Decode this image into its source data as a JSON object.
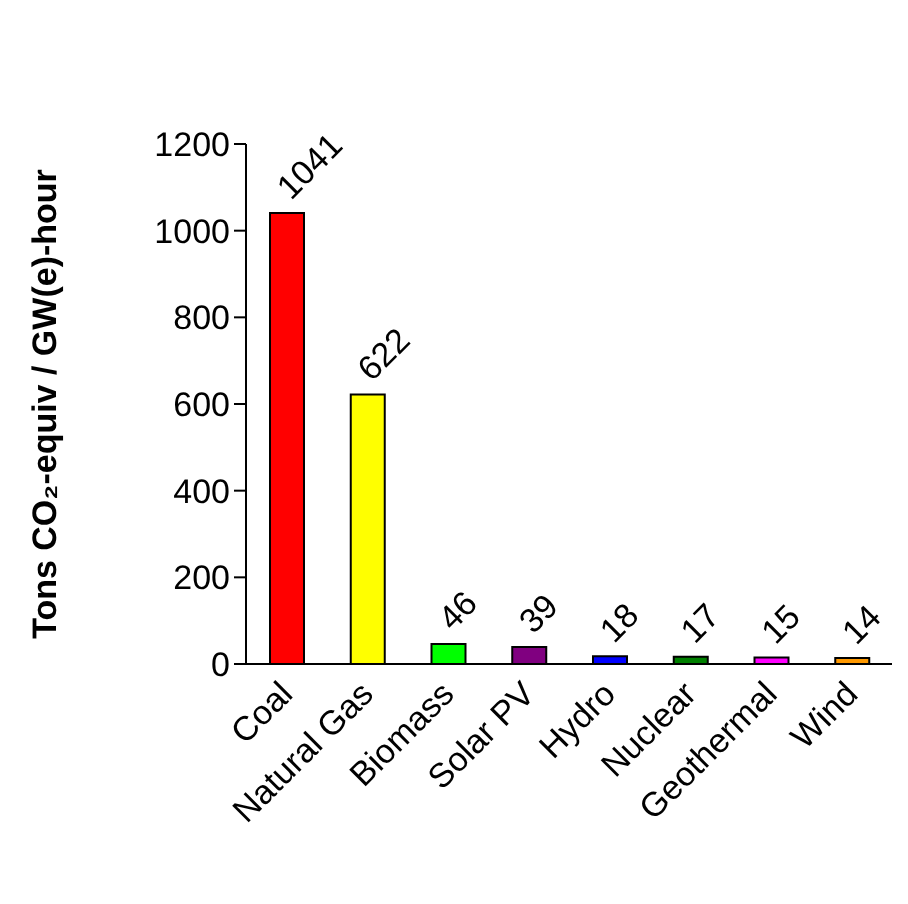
{
  "chart_data": {
    "type": "bar",
    "ylabel": "Tons CO₂-equiv / GW(e)-hour",
    "categories": [
      "Coal",
      "Natural Gas",
      "Biomass",
      "Solar PV",
      "Hydro",
      "Nuclear",
      "Geothermal",
      "Wind"
    ],
    "values": [
      1041,
      622,
      46,
      39,
      18,
      17,
      15,
      14
    ],
    "colors": [
      "#ff0000",
      "#ffff00",
      "#00ff00",
      "#800080",
      "#0000ff",
      "#008000",
      "#ff00ff",
      "#ff9900"
    ],
    "ylim": [
      0,
      1200
    ],
    "yticks": [
      0,
      200,
      400,
      600,
      800,
      1000,
      1200
    ],
    "grid": false,
    "data_labels": true
  }
}
